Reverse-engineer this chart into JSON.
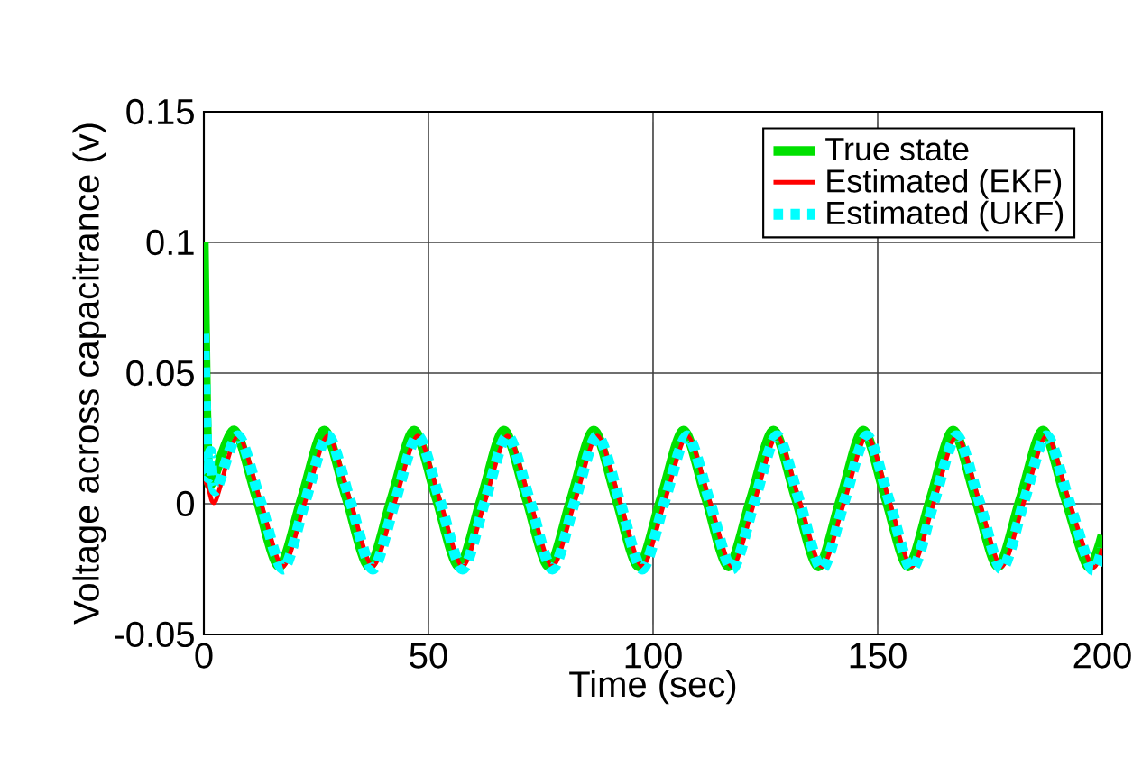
{
  "chart_data": {
    "type": "line",
    "xlabel": "Time (sec)",
    "ylabel": "Voltage across capacitrance (v)",
    "xlim": [
      0,
      200
    ],
    "ylim": [
      -0.05,
      0.15
    ],
    "xticks": [
      0,
      50,
      100,
      150,
      200
    ],
    "yticks": [
      -0.05,
      0,
      0.05,
      0.1,
      0.15
    ],
    "grid": true,
    "legend": "top right",
    "series": [
      {
        "name": "True state",
        "color": "#00e000",
        "line_style": "solid",
        "x": [
          0,
          0.5,
          1,
          1.8,
          6.8,
          11.8,
          16.8,
          21.8,
          26.8,
          31.8,
          36.8,
          41.8,
          46.8,
          51.8,
          56.8,
          61.8,
          66.8,
          71.8,
          76.8,
          81.8,
          86.8,
          91.8,
          96.8,
          101.8,
          106.8,
          111.8,
          116.8,
          121.8,
          126.8,
          131.8,
          136.8,
          141.8,
          146.8,
          151.8,
          156.8,
          161.8,
          166.8,
          171.8,
          176.8,
          181.8,
          186.8,
          191.8,
          196.8,
          200
        ],
        "values": [
          0.1,
          0.04,
          0.012,
          0.008,
          0.028,
          0.002,
          -0.024,
          0.002,
          0.028,
          0.002,
          -0.024,
          0.002,
          0.028,
          0.002,
          -0.024,
          0.002,
          0.028,
          0.002,
          -0.024,
          0.002,
          0.028,
          0.002,
          -0.024,
          0.002,
          0.028,
          0.002,
          -0.024,
          0.002,
          0.028,
          0.002,
          -0.024,
          0.002,
          0.028,
          0.002,
          -0.024,
          0.002,
          0.028,
          0.002,
          -0.024,
          0.002,
          0.028,
          0.002,
          -0.024,
          -0.012
        ]
      },
      {
        "name": "Estimated (EKF)",
        "color": "#ff0000",
        "line_style": "solid",
        "x": [
          0,
          1,
          2.6,
          7.6,
          12.6,
          17.6,
          22.6,
          27.6,
          32.6,
          37.6,
          42.6,
          47.6,
          52.6,
          57.6,
          62.6,
          67.6,
          72.6,
          77.6,
          82.6,
          87.6,
          92.6,
          97.6,
          102.6,
          107.6,
          112.6,
          117.6,
          122.6,
          127.6,
          132.6,
          137.6,
          142.6,
          147.6,
          152.6,
          157.6,
          162.6,
          167.6,
          172.6,
          177.6,
          182.6,
          187.6,
          192.6,
          197.6,
          200
        ],
        "values": [
          0.01,
          0.006,
          0.001,
          0.026,
          0.001,
          -0.024,
          0.001,
          0.026,
          0.001,
          -0.024,
          0.001,
          0.026,
          0.001,
          -0.024,
          0.001,
          0.026,
          0.001,
          -0.024,
          0.001,
          0.026,
          0.001,
          -0.024,
          0.001,
          0.026,
          0.001,
          -0.024,
          0.001,
          0.026,
          0.001,
          -0.024,
          0.001,
          0.026,
          0.001,
          -0.024,
          0.001,
          0.026,
          0.001,
          -0.024,
          0.001,
          0.026,
          0.001,
          -0.024,
          -0.017
        ]
      },
      {
        "name": "Estimated (UKF)",
        "color": "#00ffff",
        "line_style": "dotted",
        "x": [
          0,
          0.5,
          1,
          1.5,
          2.6,
          7.6,
          12.6,
          17.6,
          22.6,
          27.6,
          32.6,
          37.6,
          42.6,
          47.6,
          52.6,
          57.6,
          62.6,
          67.6,
          72.6,
          77.6,
          82.6,
          87.6,
          92.6,
          97.6,
          102.6,
          107.6,
          112.6,
          117.6,
          122.6,
          127.6,
          132.6,
          137.6,
          142.6,
          147.6,
          152.6,
          157.6,
          162.6,
          167.6,
          172.6,
          177.6,
          182.6,
          187.6,
          192.6,
          197.6,
          200
        ],
        "values": [
          0.065,
          0.03,
          0.01,
          0.02,
          0.005,
          0.026,
          0.001,
          -0.025,
          0.001,
          0.026,
          0.001,
          -0.025,
          0.001,
          0.026,
          0.001,
          -0.025,
          0.001,
          0.026,
          0.001,
          -0.025,
          0.001,
          0.026,
          0.001,
          -0.025,
          0.001,
          0.026,
          0.001,
          -0.025,
          0.001,
          0.026,
          0.001,
          -0.025,
          0.001,
          0.026,
          0.001,
          -0.025,
          0.001,
          0.026,
          0.001,
          -0.025,
          0.001,
          0.026,
          0.001,
          -0.025,
          -0.017
        ]
      }
    ]
  }
}
